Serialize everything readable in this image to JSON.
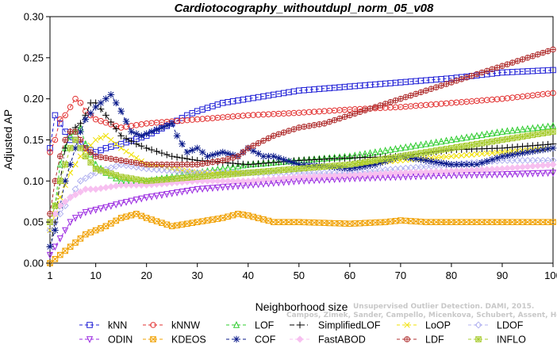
{
  "chart_data": {
    "type": "line",
    "title": "Cardiotocography_withoutdupl_norm_05_v08",
    "xlabel": "Neighborhood size",
    "ylabel": "Adjusted AP",
    "xlim": [
      1,
      100
    ],
    "ylim": [
      0,
      0.3
    ],
    "xticks": [
      1,
      10,
      20,
      30,
      40,
      50,
      60,
      70,
      80,
      90,
      100
    ],
    "yticks": [
      "0.00",
      "0.05",
      "0.10",
      "0.15",
      "0.20",
      "0.25",
      "0.30"
    ],
    "watermark": [
      "Unsupervised Outlier Detection. DAMI, 2015.",
      "Campos, Zimek, Sander, Campello, Micenkova, Schubert, Assent, Houle"
    ],
    "legend_position": "bottom",
    "series": [
      {
        "name": "kNN",
        "color": "#1f1fd6",
        "marker": "square",
        "dash": "4,3",
        "points": [
          [
            1,
            0.14
          ],
          [
            2,
            0.18
          ],
          [
            3,
            0.17
          ],
          [
            4,
            0.16
          ],
          [
            5,
            0.15
          ],
          [
            6,
            0.15
          ],
          [
            7,
            0.145
          ],
          [
            8,
            0.14
          ],
          [
            10,
            0.135
          ],
          [
            12,
            0.14
          ],
          [
            15,
            0.145
          ],
          [
            20,
            0.155
          ],
          [
            25,
            0.17
          ],
          [
            28,
            0.18
          ],
          [
            30,
            0.185
          ],
          [
            35,
            0.195
          ],
          [
            40,
            0.2
          ],
          [
            45,
            0.205
          ],
          [
            50,
            0.21
          ],
          [
            60,
            0.215
          ],
          [
            70,
            0.22
          ],
          [
            80,
            0.225
          ],
          [
            90,
            0.232
          ],
          [
            100,
            0.235
          ]
        ]
      },
      {
        "name": "kNNW",
        "color": "#e23030",
        "marker": "circle",
        "dash": "4,3",
        "points": [
          [
            1,
            0.135
          ],
          [
            2,
            0.15
          ],
          [
            3,
            0.175
          ],
          [
            4,
            0.18
          ],
          [
            5,
            0.19
          ],
          [
            6,
            0.2
          ],
          [
            7,
            0.195
          ],
          [
            8,
            0.185
          ],
          [
            10,
            0.175
          ],
          [
            15,
            0.165
          ],
          [
            20,
            0.17
          ],
          [
            30,
            0.175
          ],
          [
            40,
            0.18
          ],
          [
            50,
            0.183
          ],
          [
            60,
            0.187
          ],
          [
            70,
            0.19
          ],
          [
            80,
            0.195
          ],
          [
            90,
            0.2
          ],
          [
            100,
            0.207
          ]
        ]
      },
      {
        "name": "LOF",
        "color": "#2ecc2e",
        "marker": "triangle-up",
        "dash": "4,3",
        "points": [
          [
            1,
            0.05
          ],
          [
            2,
            0.07
          ],
          [
            3,
            0.12
          ],
          [
            4,
            0.14
          ],
          [
            5,
            0.155
          ],
          [
            6,
            0.16
          ],
          [
            7,
            0.165
          ],
          [
            8,
            0.145
          ],
          [
            10,
            0.12
          ],
          [
            12,
            0.11
          ],
          [
            15,
            0.1
          ],
          [
            20,
            0.1
          ],
          [
            30,
            0.11
          ],
          [
            40,
            0.12
          ],
          [
            50,
            0.125
          ],
          [
            60,
            0.13
          ],
          [
            70,
            0.14
          ],
          [
            80,
            0.15
          ],
          [
            90,
            0.16
          ],
          [
            100,
            0.167
          ]
        ]
      },
      {
        "name": "SimplifiedLOF",
        "color": "#000000",
        "marker": "plus",
        "dash": "6,3,1,3",
        "points": [
          [
            1,
            0.02
          ],
          [
            2,
            0.05
          ],
          [
            3,
            0.1
          ],
          [
            4,
            0.14
          ],
          [
            5,
            0.16
          ],
          [
            6,
            0.165
          ],
          [
            7,
            0.17
          ],
          [
            8,
            0.18
          ],
          [
            9,
            0.195
          ],
          [
            10,
            0.195
          ],
          [
            12,
            0.18
          ],
          [
            15,
            0.155
          ],
          [
            18,
            0.145
          ],
          [
            20,
            0.14
          ],
          [
            25,
            0.13
          ],
          [
            30,
            0.125
          ],
          [
            40,
            0.12
          ],
          [
            50,
            0.125
          ],
          [
            60,
            0.128
          ],
          [
            70,
            0.13
          ],
          [
            80,
            0.138
          ],
          [
            90,
            0.14
          ],
          [
            100,
            0.145
          ]
        ]
      },
      {
        "name": "LoOP",
        "color": "#f0e000",
        "marker": "cross",
        "dash": "4,3",
        "points": [
          [
            1,
            0.04
          ],
          [
            3,
            0.08
          ],
          [
            5,
            0.11
          ],
          [
            7,
            0.13
          ],
          [
            10,
            0.15
          ],
          [
            12,
            0.155
          ],
          [
            15,
            0.14
          ],
          [
            20,
            0.12
          ],
          [
            30,
            0.11
          ],
          [
            40,
            0.11
          ],
          [
            50,
            0.115
          ],
          [
            60,
            0.12
          ],
          [
            70,
            0.125
          ],
          [
            80,
            0.13
          ],
          [
            90,
            0.135
          ],
          [
            100,
            0.14
          ]
        ]
      },
      {
        "name": "LDOF",
        "color": "#b0b0f0",
        "marker": "diamond",
        "dash": "4,3",
        "points": [
          [
            1,
            0.04
          ],
          [
            3,
            0.06
          ],
          [
            5,
            0.08
          ],
          [
            7,
            0.1
          ],
          [
            10,
            0.11
          ],
          [
            15,
            0.12
          ],
          [
            20,
            0.115
          ],
          [
            30,
            0.11
          ],
          [
            40,
            0.11
          ],
          [
            50,
            0.11
          ],
          [
            60,
            0.11
          ],
          [
            70,
            0.115
          ],
          [
            80,
            0.12
          ],
          [
            90,
            0.125
          ],
          [
            100,
            0.125
          ]
        ]
      },
      {
        "name": "ODIN",
        "color": "#9a28e0",
        "marker": "triangle-down",
        "dash": "4,3",
        "points": [
          [
            1,
            0.01
          ],
          [
            2,
            0.02
          ],
          [
            3,
            0.03
          ],
          [
            4,
            0.04
          ],
          [
            5,
            0.05
          ],
          [
            6,
            0.055
          ],
          [
            8,
            0.062
          ],
          [
            10,
            0.065
          ],
          [
            12,
            0.068
          ],
          [
            15,
            0.073
          ],
          [
            20,
            0.08
          ],
          [
            25,
            0.085
          ],
          [
            30,
            0.09
          ],
          [
            40,
            0.095
          ],
          [
            50,
            0.1
          ],
          [
            60,
            0.103
          ],
          [
            70,
            0.105
          ],
          [
            80,
            0.107
          ],
          [
            90,
            0.108
          ],
          [
            100,
            0.11
          ]
        ]
      },
      {
        "name": "KDEOS",
        "color": "#f0a000",
        "marker": "square-x",
        "dash": "4,3",
        "points": [
          [
            1,
            0.0
          ],
          [
            2,
            0.005
          ],
          [
            3,
            0.01
          ],
          [
            4,
            0.015
          ],
          [
            5,
            0.02
          ],
          [
            6,
            0.025
          ],
          [
            7,
            0.03
          ],
          [
            8,
            0.035
          ],
          [
            10,
            0.04
          ],
          [
            12,
            0.045
          ],
          [
            15,
            0.055
          ],
          [
            18,
            0.06
          ],
          [
            20,
            0.055
          ],
          [
            25,
            0.045
          ],
          [
            30,
            0.05
          ],
          [
            35,
            0.055
          ],
          [
            38,
            0.06
          ],
          [
            40,
            0.058
          ],
          [
            45,
            0.05
          ],
          [
            50,
            0.05
          ],
          [
            60,
            0.048
          ],
          [
            67,
            0.05
          ],
          [
            70,
            0.052
          ],
          [
            75,
            0.05
          ],
          [
            80,
            0.05
          ],
          [
            90,
            0.05
          ],
          [
            100,
            0.05
          ]
        ]
      },
      {
        "name": "COF",
        "color": "#0a1a8a",
        "marker": "asterisk",
        "dash": "4,3",
        "points": [
          [
            1,
            0.02
          ],
          [
            2,
            0.04
          ],
          [
            3,
            0.07
          ],
          [
            4,
            0.1
          ],
          [
            5,
            0.12
          ],
          [
            6,
            0.14
          ],
          [
            7,
            0.16
          ],
          [
            8,
            0.175
          ],
          [
            10,
            0.19
          ],
          [
            12,
            0.2
          ],
          [
            13,
            0.205
          ],
          [
            15,
            0.185
          ],
          [
            17,
            0.16
          ],
          [
            19,
            0.155
          ],
          [
            21,
            0.16
          ],
          [
            23,
            0.165
          ],
          [
            25,
            0.17
          ],
          [
            26,
            0.155
          ],
          [
            28,
            0.135
          ],
          [
            30,
            0.14
          ],
          [
            32,
            0.13
          ],
          [
            35,
            0.135
          ],
          [
            38,
            0.13
          ],
          [
            40,
            0.14
          ],
          [
            43,
            0.13
          ],
          [
            45,
            0.13
          ],
          [
            50,
            0.12
          ],
          [
            55,
            0.118
          ],
          [
            60,
            0.115
          ],
          [
            65,
            0.12
          ],
          [
            70,
            0.13
          ],
          [
            75,
            0.125
          ],
          [
            80,
            0.12
          ],
          [
            85,
            0.12
          ],
          [
            90,
            0.13
          ],
          [
            95,
            0.135
          ],
          [
            100,
            0.14
          ]
        ]
      },
      {
        "name": "FastABOD",
        "color": "#f7c0f0",
        "marker": "diamond-filled",
        "dash": "4,3",
        "points": [
          [
            1,
            0.05
          ],
          [
            3,
            0.07
          ],
          [
            5,
            0.08
          ],
          [
            8,
            0.09
          ],
          [
            10,
            0.09
          ],
          [
            15,
            0.095
          ],
          [
            20,
            0.095
          ],
          [
            30,
            0.1
          ],
          [
            40,
            0.1
          ],
          [
            50,
            0.105
          ],
          [
            60,
            0.107
          ],
          [
            70,
            0.11
          ],
          [
            80,
            0.112
          ],
          [
            90,
            0.115
          ],
          [
            100,
            0.12
          ]
        ]
      },
      {
        "name": "LDF",
        "color": "#b03030",
        "marker": "circle-plus",
        "dash": "4,3",
        "points": [
          [
            1,
            0.06
          ],
          [
            2,
            0.1
          ],
          [
            3,
            0.13
          ],
          [
            4,
            0.15
          ],
          [
            5,
            0.16
          ],
          [
            6,
            0.16
          ],
          [
            8,
            0.14
          ],
          [
            10,
            0.13
          ],
          [
            15,
            0.125
          ],
          [
            20,
            0.12
          ],
          [
            30,
            0.12
          ],
          [
            35,
            0.125
          ],
          [
            38,
            0.13
          ],
          [
            40,
            0.14
          ],
          [
            45,
            0.155
          ],
          [
            50,
            0.165
          ],
          [
            55,
            0.17
          ],
          [
            60,
            0.18
          ],
          [
            70,
            0.2
          ],
          [
            80,
            0.22
          ],
          [
            90,
            0.24
          ],
          [
            95,
            0.25
          ],
          [
            100,
            0.26
          ]
        ]
      },
      {
        "name": "INFLO",
        "color": "#a8cc30",
        "marker": "square-star",
        "dash": "4,3",
        "points": [
          [
            1,
            0.05
          ],
          [
            2,
            0.07
          ],
          [
            3,
            0.1
          ],
          [
            4,
            0.12
          ],
          [
            5,
            0.14
          ],
          [
            6,
            0.15
          ],
          [
            8,
            0.13
          ],
          [
            10,
            0.115
          ],
          [
            15,
            0.105
          ],
          [
            20,
            0.1
          ],
          [
            30,
            0.105
          ],
          [
            40,
            0.11
          ],
          [
            50,
            0.115
          ],
          [
            60,
            0.12
          ],
          [
            70,
            0.13
          ],
          [
            80,
            0.14
          ],
          [
            90,
            0.15
          ],
          [
            100,
            0.16
          ]
        ]
      }
    ]
  }
}
